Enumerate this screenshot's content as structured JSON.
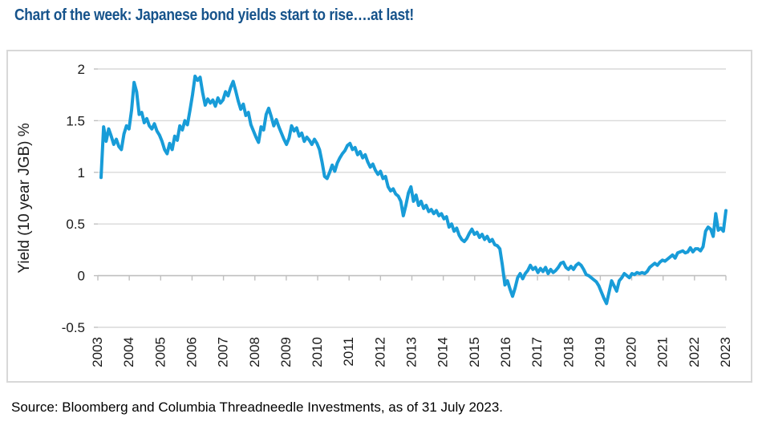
{
  "title": {
    "text": "Chart of the week: Japanese bond yields start to rise….at last!"
  },
  "source": {
    "text": "Source: Bloomberg and Columbia Threadneedle Investments, as of 31 July 2023."
  },
  "colors": {
    "title": "#16538B",
    "line": "#189CD8",
    "grid": "#D9D9D9",
    "axis": "#BFBFBF",
    "text": "#1A1A1A",
    "card_border": "#D8D8D8",
    "background": "#FFFFFF"
  },
  "chart_data": {
    "type": "line",
    "title": "",
    "xlabel": "",
    "ylabel": "Yield (10 year JGB) %",
    "ylim": [
      -0.5,
      2
    ],
    "yticks": [
      2,
      1.5,
      1,
      0.5,
      0,
      -0.5
    ],
    "ytick_labels": [
      "2",
      "1.5",
      "1",
      "0.5",
      "0",
      "-0.5"
    ],
    "x_tick_labels": [
      "2003",
      "2004",
      "2005",
      "2006",
      "2007",
      "2008",
      "2009",
      "2010",
      "2011",
      "2012",
      "2013",
      "2014",
      "2015",
      "2016",
      "2017",
      "2018",
      "2019",
      "2020",
      "2021",
      "2022",
      "2023"
    ],
    "x_range": "Jan 2003 - Jul 2023, monthly",
    "grid": "horizontal",
    "legend": false,
    "series": [
      {
        "name": "10 year JGB yield %",
        "color": "#189CD8",
        "values_by_year": {
          "2003": [
            0.95,
            1.44,
            1.3,
            1.42,
            1.35,
            1.27,
            1.32,
            1.25,
            1.22,
            1.37,
            1.45,
            1.42
          ],
          "2004": [
            1.6,
            1.87,
            1.78,
            1.56,
            1.58,
            1.48,
            1.52,
            1.45,
            1.42,
            1.47,
            1.4,
            1.36
          ],
          "2005": [
            1.3,
            1.22,
            1.18,
            1.28,
            1.22,
            1.35,
            1.31,
            1.45,
            1.41,
            1.5,
            1.46,
            1.6
          ],
          "2006": [
            1.75,
            1.93,
            1.89,
            1.92,
            1.77,
            1.65,
            1.71,
            1.67,
            1.7,
            1.64,
            1.72,
            1.67
          ],
          "2007": [
            1.7,
            1.78,
            1.74,
            1.82,
            1.88,
            1.79,
            1.69,
            1.61,
            1.66,
            1.55,
            1.58,
            1.46
          ],
          "2008": [
            1.4,
            1.34,
            1.29,
            1.44,
            1.41,
            1.56,
            1.62,
            1.54,
            1.45,
            1.51,
            1.44,
            1.38
          ],
          "2009": [
            1.32,
            1.27,
            1.33,
            1.45,
            1.4,
            1.43,
            1.35,
            1.38,
            1.3,
            1.34,
            1.31,
            1.27
          ],
          "2010": [
            1.32,
            1.28,
            1.22,
            1.1,
            0.96,
            0.94,
            1.0,
            1.07,
            1.01,
            1.09,
            1.14,
            1.18
          ],
          "2011": [
            1.21,
            1.26,
            1.28,
            1.22,
            1.24,
            1.17,
            1.2,
            1.14,
            1.17,
            1.1,
            1.05,
            1.08
          ],
          "2012": [
            1.02,
            0.98,
            1.01,
            0.94,
            0.96,
            0.86,
            0.82,
            0.84,
            0.79,
            0.77,
            0.72,
            0.58
          ],
          "2013": [
            0.68,
            0.8,
            0.86,
            0.72,
            0.78,
            0.68,
            0.72,
            0.65,
            0.68,
            0.62,
            0.64,
            0.6
          ],
          "2014": [
            0.63,
            0.58,
            0.6,
            0.55,
            0.57,
            0.47,
            0.5,
            0.43,
            0.46,
            0.39,
            0.35,
            0.33
          ],
          "2015": [
            0.36,
            0.41,
            0.45,
            0.4,
            0.42,
            0.37,
            0.4,
            0.35,
            0.38,
            0.33,
            0.35,
            0.3
          ],
          "2016": [
            0.29,
            0.26,
            0.1,
            -0.09,
            -0.05,
            -0.13,
            -0.2,
            -0.12,
            -0.02,
            0.02,
            -0.03,
            0.02
          ],
          "2017": [
            0.05,
            0.1,
            0.06,
            0.08,
            0.03,
            0.07,
            0.04,
            0.08,
            0.02,
            0.06,
            0.03,
            0.05
          ],
          "2018": [
            0.08,
            0.12,
            0.13,
            0.08,
            0.06,
            0.09,
            0.06,
            0.1,
            0.12,
            0.1,
            0.06,
            0.01
          ],
          "2019": [
            0.0,
            -0.02,
            -0.04,
            -0.06,
            -0.1,
            -0.16,
            -0.22,
            -0.27,
            -0.16,
            -0.05,
            -0.1,
            -0.15
          ],
          "2020": [
            -0.05,
            -0.02,
            0.02,
            0.0,
            -0.02,
            0.02,
            0.01,
            0.03,
            0.02,
            0.03,
            0.02,
            0.04
          ],
          "2021": [
            0.08,
            0.1,
            0.12,
            0.1,
            0.13,
            0.15,
            0.14,
            0.16,
            0.18,
            0.2,
            0.17,
            0.22
          ],
          "2022": [
            0.23,
            0.24,
            0.22,
            0.23,
            0.27,
            0.23,
            0.26,
            0.26,
            0.24,
            0.28,
            0.43,
            0.47
          ],
          "2023": [
            0.45,
            0.38,
            0.6,
            0.44,
            0.46,
            0.43,
            0.63
          ]
        }
      }
    ]
  }
}
